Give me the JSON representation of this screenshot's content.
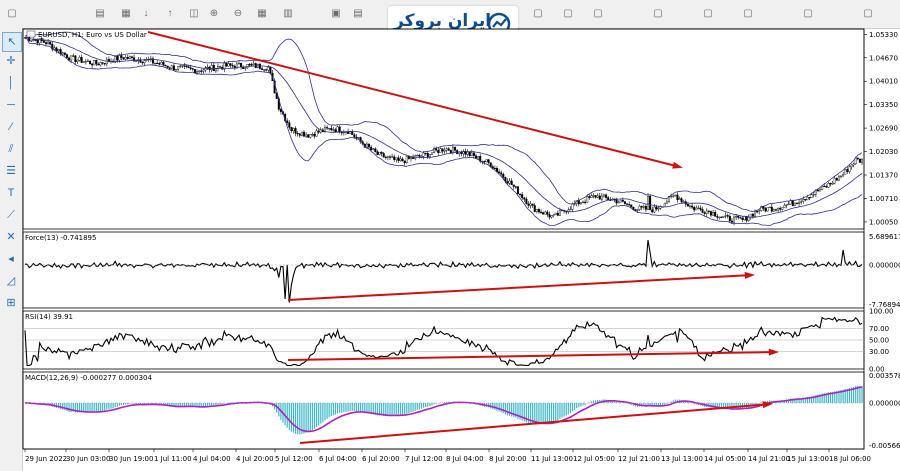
{
  "logo": {
    "text": "ایران بروکر"
  },
  "main_chart": {
    "title": "EURUSD, H1:  Euro vs US Dollar",
    "price_labels": [
      "1.05330",
      "1.04670",
      "1.04010",
      "1.03350",
      "1.02690",
      "1.02030",
      "1.01370",
      "1.00710",
      "1.00050"
    ]
  },
  "force": {
    "title": "Force(13) -0.741895",
    "labels": [
      "5.689617",
      "0.000000",
      "-7.768941"
    ]
  },
  "rsi": {
    "title": "RSI(14) 39.91",
    "labels": [
      "100.00",
      "70.00",
      "50.00",
      "30.00",
      "0.00"
    ]
  },
  "macd": {
    "title": "MACD(12,26,9) -0.000277 0.000304",
    "labels": [
      "0.003578",
      "0.000000",
      "-0.005668"
    ]
  },
  "time_axis": [
    "29 Jun 2022",
    "30 Jun 03:00",
    "30 Jun 19:00",
    "1 Jul 11:00",
    "4 Jul 04:00",
    "4 Jul 20:00",
    "5 Jul 12:00",
    "6 Jul 04:00",
    "6 Jul 20:00",
    "7 Jul 12:00",
    "8 Jul 04:00",
    "8 Jul 20:00",
    "11 Jul 13:00",
    "12 Jul 05:00",
    "12 Jul 21:00",
    "13 Jul 13:00",
    "14 Jul 05:00",
    "14 Jul 21:00",
    "15 Jul 13:00",
    "18 Jul 06:00"
  ],
  "colors": {
    "bollinger": "#2f2f8f",
    "arrow": "#cc1111",
    "macd_hist": "#3cb8c8",
    "macd_signal": "#b020c0"
  }
}
